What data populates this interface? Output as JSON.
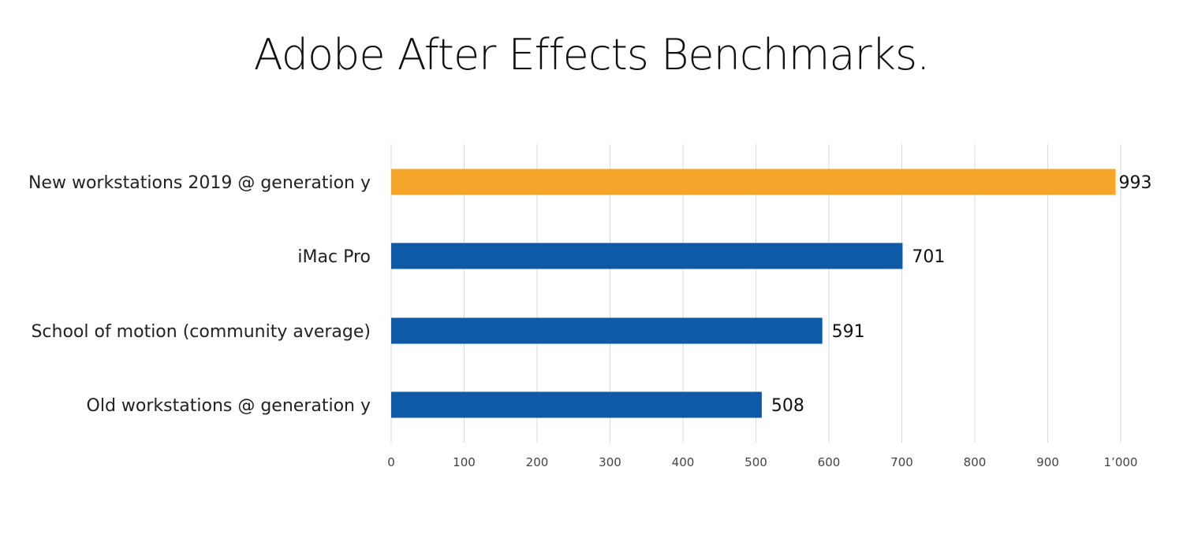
{
  "chart_data": {
    "type": "bar",
    "orientation": "horizontal",
    "title": "Adobe After Effects Benchmarks.",
    "xlabel": "",
    "ylabel": "",
    "categories": [
      "New workstations 2019 @ generation y",
      "iMac Pro",
      "School of motion (community average)",
      "Old workstations @ generation y"
    ],
    "values": [
      993,
      701,
      591,
      508
    ],
    "value_labels": [
      "993",
      "701",
      "591",
      "508"
    ],
    "bar_colors": [
      "#F5A52A",
      "#0E5AA7",
      "#0E5AA7",
      "#0E5AA7"
    ],
    "xlim": [
      0,
      1000
    ],
    "x_ticks": [
      0,
      100,
      200,
      300,
      400,
      500,
      600,
      700,
      800,
      900,
      1000
    ],
    "x_tick_labels": [
      "0",
      "100",
      "200",
      "300",
      "400",
      "500",
      "600",
      "700",
      "800",
      "900",
      "1’000"
    ],
    "grid": "vertical",
    "grid_color": "#D9D9D9",
    "legend": "none"
  }
}
